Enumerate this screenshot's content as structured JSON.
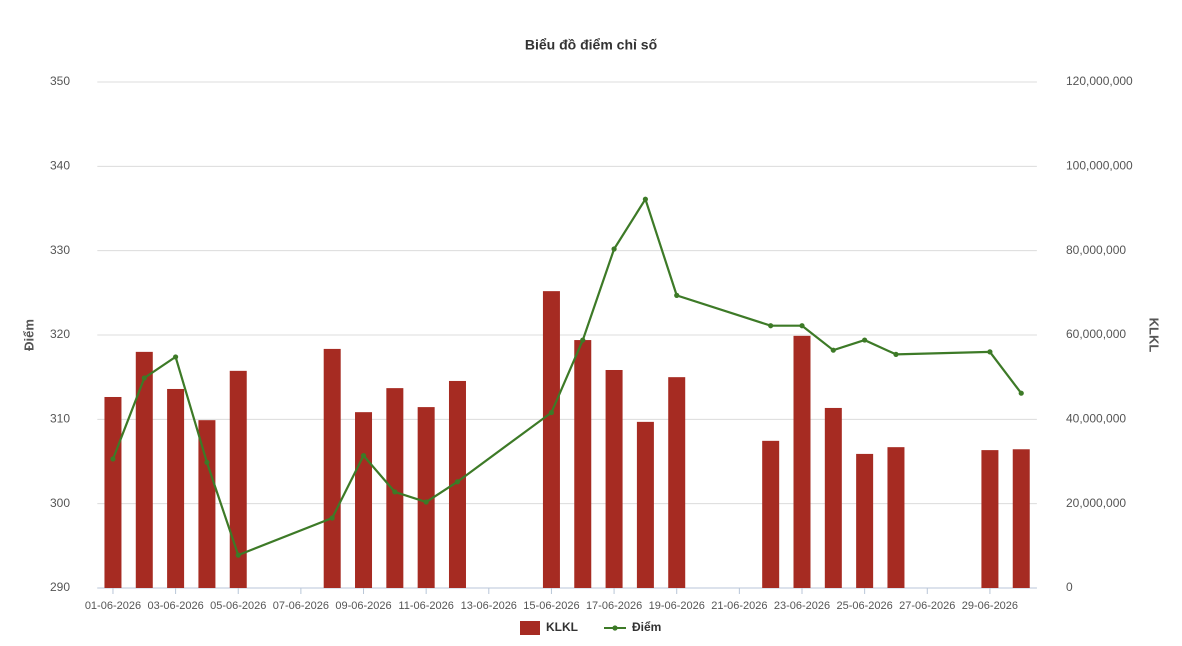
{
  "chart_data": {
    "type": "combo",
    "title": "Biểu đồ điểm chỉ số",
    "y_label": "Điểm",
    "y2_label": "KLKL",
    "x": [
      "01-06-2026",
      "02-06-2026",
      "03-06-2026",
      "04-06-2026",
      "05-06-2026",
      "08-06-2026",
      "09-06-2026",
      "10-06-2026",
      "11-06-2026",
      "12-06-2026",
      "15-06-2026",
      "16-06-2026",
      "17-06-2026",
      "18-06-2026",
      "19-06-2026",
      "22-06-2026",
      "23-06-2026",
      "24-06-2026",
      "25-06-2026",
      "26-06-2026",
      "29-06-2026",
      "30-06-2026"
    ],
    "xlim": [
      "01-06-2026",
      "30-06-2026"
    ],
    "xticks": [
      "01-06-2026",
      "03-06-2026",
      "05-06-2026",
      "07-06-2026",
      "09-06-2026",
      "11-06-2026",
      "13-06-2026",
      "15-06-2026",
      "17-06-2026",
      "19-06-2026",
      "21-06-2026",
      "23-06-2026",
      "25-06-2026",
      "27-06-2026",
      "29-06-2026"
    ],
    "series": [
      {
        "name": "KLKL",
        "type": "bar",
        "axis": "y2",
        "color": "#a62b22",
        "values": [
          45300000,
          56000000,
          47200000,
          39800000,
          51500000,
          56700000,
          41700000,
          47400000,
          42900000,
          49100000,
          70400000,
          58800000,
          51700000,
          39400000,
          50000000,
          34900000,
          59800000,
          42700000,
          31800000,
          33400000,
          32700000,
          32900000
        ]
      },
      {
        "name": "Điểm",
        "type": "line",
        "color": "#3d7a27",
        "values": [
          305.3,
          314.9,
          317.4,
          304.9,
          293.9,
          298.3,
          305.7,
          301.4,
          300.2,
          302.6,
          310.8,
          319.4,
          330.2,
          336.1,
          324.7,
          321.1,
          321.1,
          318.2,
          319.4,
          317.7,
          318.0,
          313.1
        ]
      }
    ],
    "ylim": [
      290,
      350
    ],
    "yticks": [
      290,
      300,
      310,
      320,
      330,
      340,
      350
    ],
    "y2lim": [
      0,
      120000000
    ],
    "y2ticks": [
      0,
      {
        "value": 20000000,
        "label": "20,000,000"
      },
      {
        "value": 40000000,
        "label": "40,000,000"
      },
      {
        "value": 60000000,
        "label": "60,000,000"
      },
      {
        "value": 80000000,
        "label": "80,000,000"
      },
      {
        "value": 100000000,
        "label": "100,000,000"
      },
      {
        "value": 120000000,
        "label": "120,000,000"
      }
    ],
    "grid": true,
    "legend": "bottom"
  }
}
